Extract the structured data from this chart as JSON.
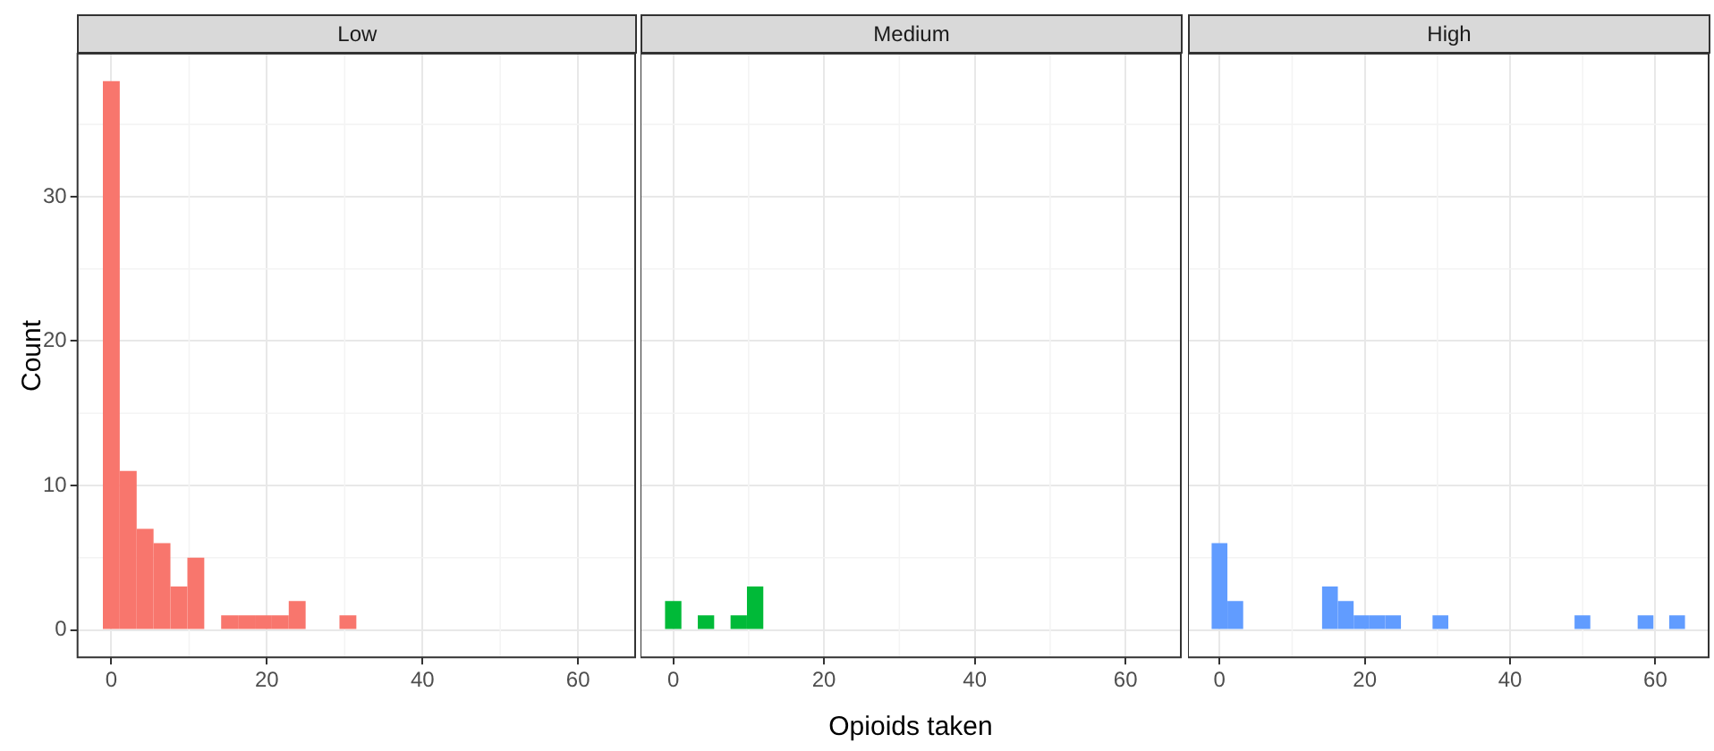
{
  "chart_data": [
    {
      "type": "histogram",
      "title": "Low",
      "ylabel": "Count",
      "color": "#f8766d",
      "bins": [
        -1.09,
        1.09,
        3.26,
        5.43,
        7.6,
        9.78,
        11.95,
        14.12,
        16.29,
        18.47,
        20.64,
        22.81,
        24.98,
        27.16,
        29.33,
        31.5,
        33.67,
        35.84,
        38.02,
        40.19,
        42.36,
        44.53,
        46.71,
        48.88,
        51.05,
        53.22,
        55.4,
        57.57,
        59.74,
        61.91,
        64.09
      ],
      "values": [
        38,
        11,
        7,
        6,
        3,
        5,
        0,
        1,
        1,
        1,
        1,
        2,
        0,
        0,
        1,
        0,
        0,
        0,
        0,
        0,
        0,
        0,
        0,
        0,
        0,
        0,
        0,
        0,
        0,
        0
      ],
      "xlim": [
        -4.34,
        67.34
      ],
      "xticks": [
        0,
        20,
        40,
        60
      ],
      "ylim": [
        -1.9,
        39.9
      ],
      "yticks": [
        0,
        10,
        20,
        30
      ],
      "grid": true
    },
    {
      "type": "histogram",
      "title": "Medium",
      "xlabel": "Opioids taken",
      "color": "#00ba38",
      "bins": [
        -1.09,
        1.09,
        3.26,
        5.43,
        7.6,
        9.78,
        11.95,
        14.12,
        16.29,
        18.47,
        20.64,
        22.81,
        24.98,
        27.16,
        29.33,
        31.5,
        33.67,
        35.84,
        38.02,
        40.19,
        42.36,
        44.53,
        46.71,
        48.88,
        51.05,
        53.22,
        55.4,
        57.57,
        59.74,
        61.91,
        64.09
      ],
      "values": [
        2,
        0,
        1,
        0,
        1,
        3,
        0,
        0,
        0,
        0,
        0,
        0,
        0,
        0,
        0,
        0,
        0,
        0,
        0,
        0,
        0,
        0,
        0,
        0,
        0,
        0,
        0,
        0,
        0,
        0
      ],
      "xlim": [
        -4.34,
        67.34
      ],
      "xticks": [
        0,
        20,
        40,
        60
      ],
      "ylim": [
        -1.9,
        39.9
      ],
      "yticks": [
        0,
        10,
        20,
        30
      ],
      "grid": true,
      "tick_labels": "x"
    },
    {
      "type": "histogram",
      "title": "High",
      "color": "#619cff",
      "bins": [
        -1.09,
        1.09,
        3.26,
        5.43,
        7.6,
        9.78,
        11.95,
        14.12,
        16.29,
        18.47,
        20.64,
        22.81,
        24.98,
        27.16,
        29.33,
        31.5,
        33.67,
        35.84,
        38.02,
        40.19,
        42.36,
        44.53,
        46.71,
        48.88,
        51.05,
        53.22,
        55.4,
        57.57,
        59.74,
        61.91,
        64.09
      ],
      "values": [
        6,
        2,
        0,
        0,
        0,
        0,
        0,
        3,
        2,
        1,
        1,
        1,
        0,
        0,
        1,
        0,
        0,
        0,
        0,
        0,
        0,
        0,
        0,
        1,
        0,
        0,
        0,
        1,
        0,
        1
      ],
      "xlim": [
        -4.34,
        67.34
      ],
      "xticks": [
        0,
        20,
        40,
        60
      ],
      "ylim": [
        -1.9,
        39.9
      ],
      "yticks": [
        0,
        10,
        20,
        30
      ],
      "grid": true,
      "tick_labels": "x"
    }
  ]
}
